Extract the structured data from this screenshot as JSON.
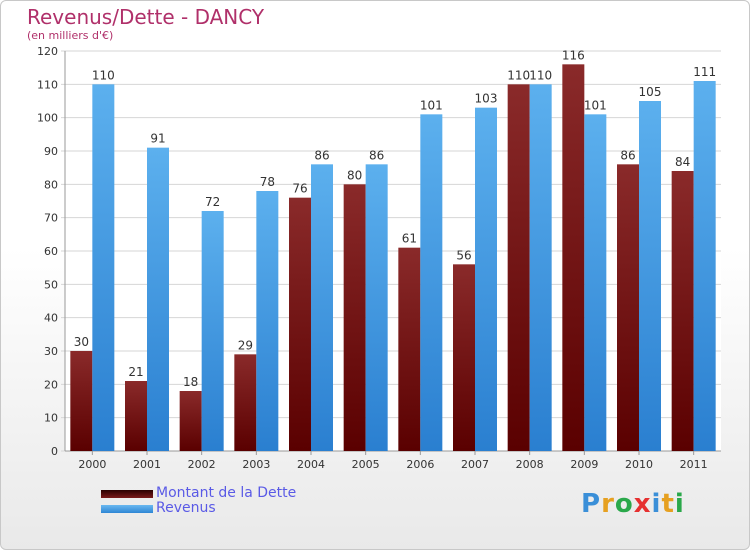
{
  "chart_data": {
    "type": "bar",
    "title": "Revenus/Dette - DANCY",
    "subtitle": "(en milliers d'€)",
    "categories": [
      "2000",
      "2001",
      "2002",
      "2003",
      "2004",
      "2005",
      "2006",
      "2007",
      "2008",
      "2009",
      "2010",
      "2011"
    ],
    "series": [
      {
        "name": "Montant de la Dette",
        "values": [
          30,
          21,
          18,
          29,
          76,
          80,
          61,
          56,
          110,
          116,
          86,
          84
        ],
        "color": "#6b1010"
      },
      {
        "name": "Revenus",
        "values": [
          110,
          91,
          72,
          78,
          86,
          86,
          101,
          103,
          110,
          101,
          105,
          111
        ],
        "color": "#4aa3e8"
      }
    ],
    "yticks": [
      0,
      10,
      20,
      30,
      40,
      50,
      60,
      70,
      80,
      90,
      100,
      110,
      120
    ],
    "ylim": [
      0,
      120
    ],
    "grid": true,
    "legend": "bottom-left"
  },
  "logo": {
    "letters": [
      "P",
      "r",
      "o",
      "x",
      "i",
      "t",
      "i"
    ],
    "colors": [
      "#3a8fd8",
      "#e6a020",
      "#2aa84a",
      "#e63030",
      "#3a8fd8",
      "#e6a020",
      "#2aa84a"
    ]
  }
}
